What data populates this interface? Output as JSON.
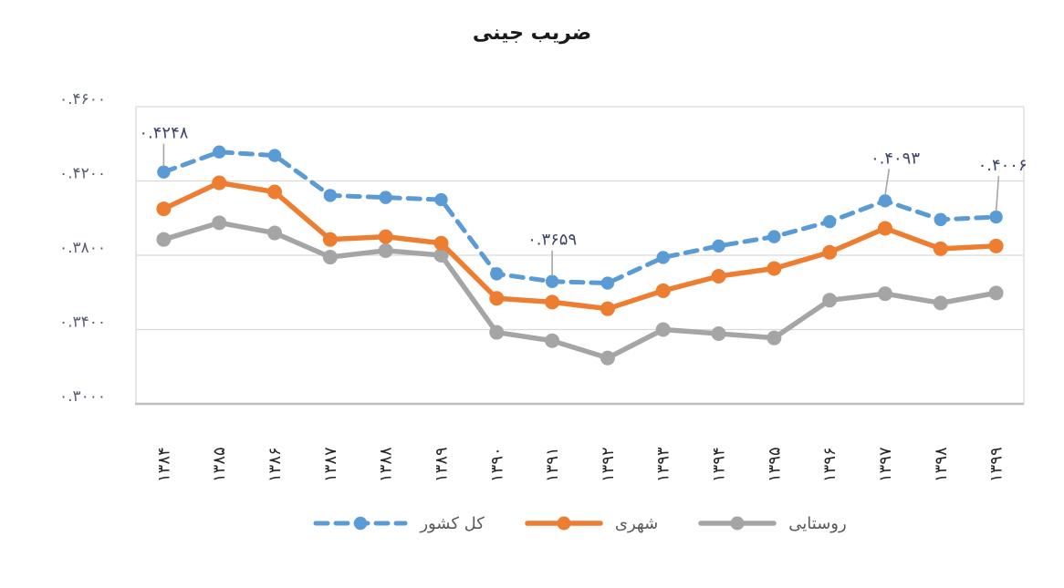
{
  "page": {
    "background": "#FFFFFF"
  },
  "chart_data": {
    "type": "line",
    "title": "ضریب جینی",
    "direction": "rtl",
    "categories": [
      1384,
      1385,
      1386,
      1387,
      1388,
      1389,
      1390,
      1391,
      1392,
      1393,
      1394,
      1395,
      1396,
      1397,
      1398,
      1399
    ],
    "categories_display": [
      "۱۳۸۴",
      "۱۳۸۵",
      "۱۳۸۶",
      "۱۳۸۷",
      "۱۳۸۸",
      "۱۳۸۹",
      "۱۳۹۰",
      "۱۳۹۱",
      "۱۳۹۲",
      "۱۳۹۳",
      "۱۳۹۴",
      "۱۳۹۵",
      "۱۳۹۶",
      "۱۳۹۷",
      "۱۳۹۸",
      "۱۳۹۹"
    ],
    "series": [
      {
        "key": "total-country",
        "name": "کل کشور",
        "color": "#5B9BD5",
        "line_style": "dashed",
        "marker": "circle",
        "values": [
          0.4248,
          0.4356,
          0.4337,
          0.4122,
          0.4111,
          0.4099,
          0.37,
          0.3659,
          0.365,
          0.3788,
          0.385,
          0.39,
          0.3981,
          0.4093,
          0.3992,
          0.4006
        ]
      },
      {
        "key": "urban",
        "name": "شهری",
        "color": "#ED7D31",
        "line_style": "solid",
        "marker": "circle",
        "values": [
          0.405,
          0.419,
          0.4141,
          0.3885,
          0.39,
          0.3865,
          0.3568,
          0.3548,
          0.3512,
          0.3609,
          0.3687,
          0.3729,
          0.3816,
          0.3945,
          0.3835,
          0.385
        ]
      },
      {
        "key": "rural",
        "name": "روستایی",
        "color": "#A5A5A5",
        "line_style": "solid",
        "marker": "circle",
        "values": [
          0.3885,
          0.3975,
          0.392,
          0.379,
          0.3825,
          0.38,
          0.3385,
          0.334,
          0.3247,
          0.34,
          0.3378,
          0.3355,
          0.3558,
          0.3593,
          0.3543,
          0.3597
        ]
      }
    ],
    "y_axis": {
      "ticks": [
        0.46,
        0.42,
        0.38,
        0.34,
        0.3
      ],
      "tick_labels": [
        "۰.۴۶۰۰",
        "۰.۴۲۰۰",
        "۰.۳۸۰۰",
        "۰.۳۴۰۰",
        "۰.۳۰۰۰"
      ],
      "min": 0.3,
      "max": 0.46
    },
    "x_axis": {
      "label_rotation": -90
    },
    "ylim": [
      0.3,
      0.46
    ],
    "grid": true,
    "legend_position": "bottom",
    "annotations": [
      {
        "series_index": 0,
        "index": 0,
        "category_display": "۱۳۸۴",
        "value": 0.4248,
        "label": "۰.۴۲۴۸"
      },
      {
        "series_index": 0,
        "index": 7,
        "category_display": "۱۳۹۱",
        "value": 0.3659,
        "label": "۰.۳۶۵۹"
      },
      {
        "series_index": 0,
        "index": 13,
        "category_display": "۱۳۹۷",
        "value": 0.4093,
        "label": "۰.۴۰۹۳"
      },
      {
        "series_index": 0,
        "index": 15,
        "category_display": "۱۳۹۹",
        "value": 0.4006,
        "label": "۰.۴۰۰۶"
      }
    ],
    "colors": {
      "grid": "#D9D9D9",
      "axis_line": "#BFBFBF",
      "y_tick_text": "#5A5F6D",
      "x_tick_text": "#262626",
      "annotation_text": "#3E4566",
      "leader_line": "#A6A6A6",
      "title_text": "#1A1A1A"
    }
  }
}
